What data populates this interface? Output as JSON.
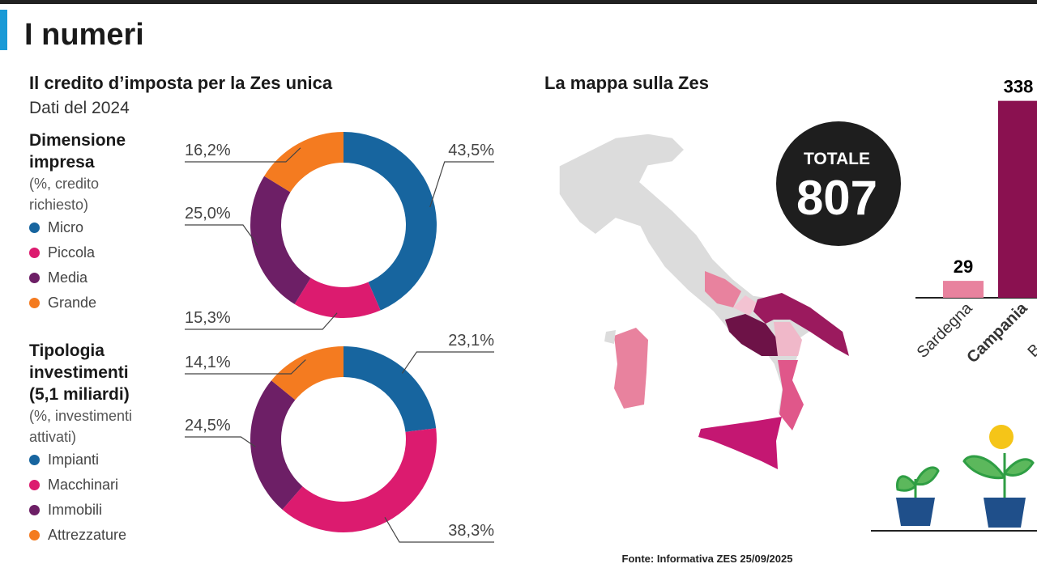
{
  "header": {
    "title": "I numeri"
  },
  "section": {
    "title": "Il credito d’imposta per la Zes unica",
    "subtitle": "Dati del 2024"
  },
  "chart_data": [
    {
      "type": "donut",
      "title": "Dimensione impresa",
      "subtitle": "(%, credito richiesto)",
      "categories": [
        "Micro",
        "Piccola",
        "Media",
        "Grande"
      ],
      "values": [
        43.5,
        15.3,
        25.0,
        16.2
      ],
      "value_labels": [
        "43,5%",
        "15,3%",
        "25,0%",
        "16,2%"
      ],
      "colors": [
        "#17659f",
        "#dc1b6f",
        "#6d1f66",
        "#f47b20"
      ]
    },
    {
      "type": "donut",
      "title": "Tipologia investimenti (5,1 miliardi)",
      "subtitle": "(%, investimenti attivati)",
      "categories": [
        "Impianti",
        "Macchinari",
        "Immobili",
        "Attrezzature"
      ],
      "values": [
        23.1,
        38.3,
        24.5,
        14.1
      ],
      "value_labels": [
        "23,1%",
        "38,3%",
        "24,5%",
        "14,1%"
      ],
      "colors": [
        "#17659f",
        "#dc1b6f",
        "#6d1f66",
        "#f47b20"
      ]
    },
    {
      "type": "bar",
      "categories": [
        "Sardegna",
        "Campania",
        "Basilicata"
      ],
      "values": [
        29,
        338,
        null
      ],
      "colors": [
        "#e8829e",
        "#8a1150",
        "#8a1150"
      ]
    }
  ],
  "map": {
    "title": "La mappa sulla Zes",
    "total_label": "TOTALE",
    "total": 807
  },
  "source": "Fonte: Informativa ZES 25/09/2025"
}
